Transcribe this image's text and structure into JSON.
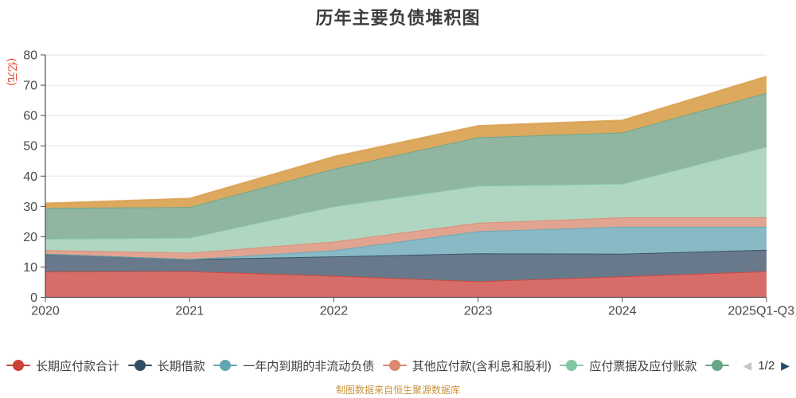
{
  "title": "历年主要负债堆积图",
  "y_axis_unit": "(亿元)",
  "footer": "制图数据来自恒生聚源数据库",
  "legend": {
    "items": [
      {
        "label": "长期应付款合计",
        "color": "#c94138"
      },
      {
        "label": "长期借款",
        "color": "#304d63"
      },
      {
        "label": "一年内到期的非流动负债",
        "color": "#61a5b3"
      },
      {
        "label": "其他应付款(含利息和股利)",
        "color": "#d8896e"
      },
      {
        "label": "应付票据及应付账款",
        "color": "#84c7a4"
      },
      {
        "label": "",
        "color": "#68a587"
      }
    ],
    "pager": {
      "prev_icon": "◀",
      "current": "1/2",
      "next_icon": "▶"
    }
  },
  "chart_data": {
    "type": "area",
    "stacked": true,
    "title": "历年主要负债堆积图",
    "ylabel": "(亿元)",
    "ylim": [
      0,
      80
    ],
    "yticks": [
      0,
      10,
      20,
      30,
      40,
      50,
      60,
      70,
      80
    ],
    "grid": true,
    "legend_position": "bottom",
    "categories": [
      "2020",
      "2021",
      "2022",
      "2023",
      "2024",
      "2025Q1-Q3"
    ],
    "series": [
      {
        "name": "长期应付款合计",
        "color": "#c94138",
        "fill": "#d76d68",
        "values": [
          8.5,
          8.6,
          7.1,
          5.3,
          6.9,
          8.6
        ]
      },
      {
        "name": "长期借款",
        "color": "#304d63",
        "fill": "#68798b",
        "values": [
          5.9,
          4.0,
          6.4,
          9.2,
          7.5,
          7.1
        ]
      },
      {
        "name": "一年内到期的非流动负债",
        "color": "#61a5b3",
        "fill": "#89b9c5",
        "values": [
          0,
          0,
          2.0,
          7.3,
          8.9,
          7.6
        ]
      },
      {
        "name": "其他应付款(含利息和股利)",
        "color": "#d8896e",
        "fill": "#e1a491",
        "values": [
          1.2,
          2.1,
          2.9,
          2.8,
          3.1,
          3.1
        ]
      },
      {
        "name": "应付票据及应付账款",
        "color": "#84c7a4",
        "fill": "#b0d6c1",
        "values": [
          3.7,
          5.0,
          11.6,
          12.2,
          11.1,
          23.3
        ]
      },
      {
        "name": "",
        "color": "#68a587",
        "fill": "#90b5a1",
        "values": [
          10.2,
          10.1,
          12.4,
          16.0,
          16.9,
          17.8
        ]
      },
      {
        "name": "",
        "color": "#d9a050",
        "fill": "#dca95e",
        "values": [
          1.5,
          2.8,
          4.0,
          3.8,
          4.0,
          5.4
        ]
      }
    ]
  }
}
